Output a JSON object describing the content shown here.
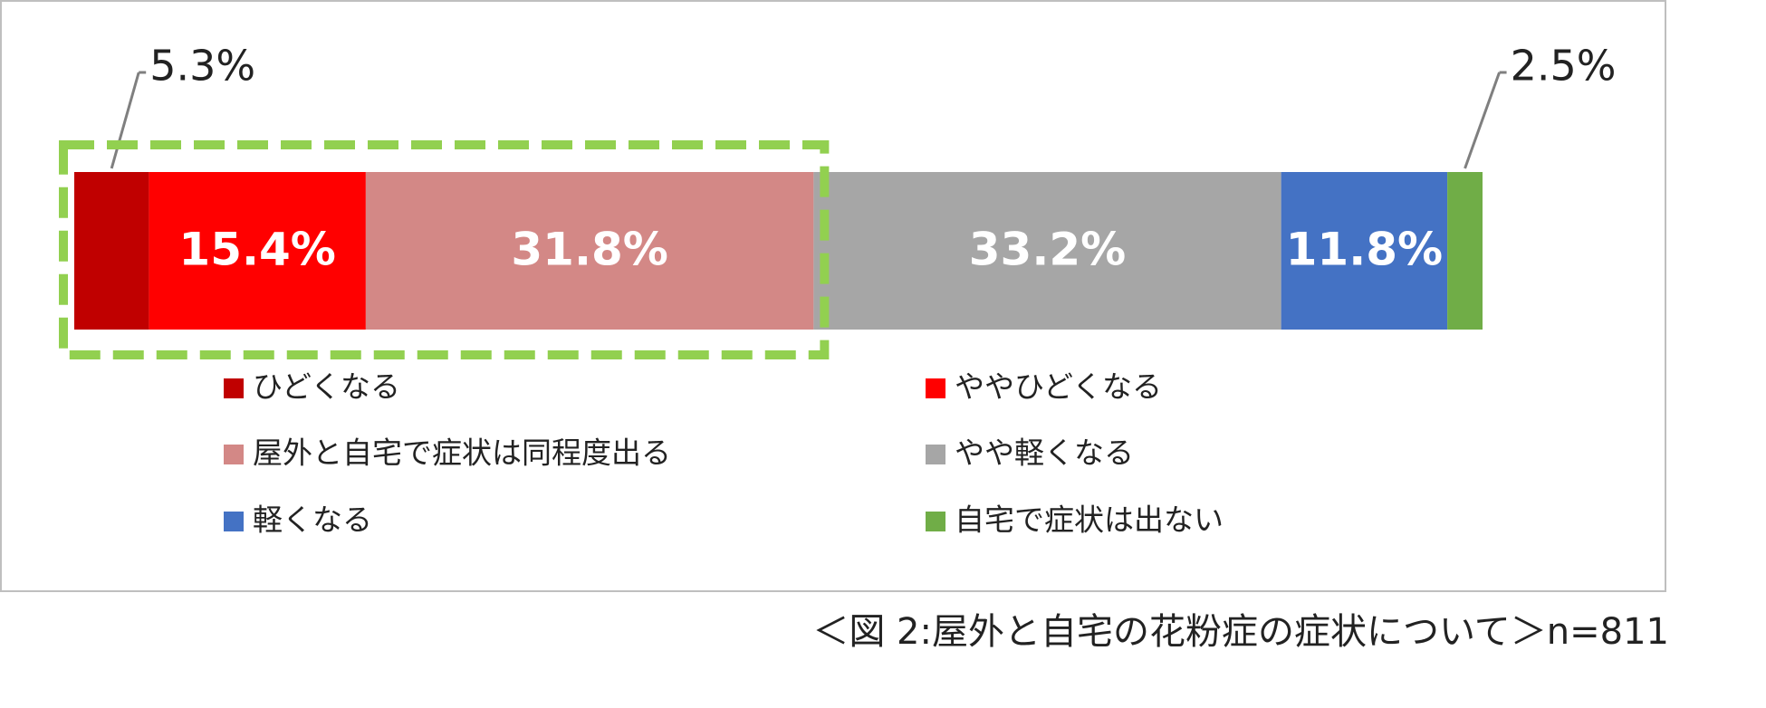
{
  "chart_data": {
    "type": "stacked_bar",
    "xlim": [
      0,
      100
    ],
    "series": [
      {
        "name": "ひどくなる",
        "color": "#c00000",
        "values": [
          5.3
        ],
        "value_labels": [
          "5.3%"
        ]
      },
      {
        "name": "ややひどくなる",
        "color": "#ff0000",
        "values": [
          15.4
        ],
        "value_labels": [
          "15.4%"
        ]
      },
      {
        "name": "屋外と自宅で症状は同程度出る",
        "color": "#d38886",
        "values": [
          31.8
        ],
        "value_labels": [
          "31.8%"
        ]
      },
      {
        "name": "やや軽くなる",
        "color": "#a6a6a6",
        "values": [
          33.2
        ],
        "value_labels": [
          "33.2%"
        ]
      },
      {
        "name": "軽くなる",
        "color": "#4472c4",
        "values": [
          11.8
        ],
        "value_labels": [
          "11.8%"
        ]
      },
      {
        "name": "自宅で症状は出ない",
        "color": "#70ad47",
        "values": [
          2.5
        ],
        "value_labels": [
          "2.5%"
        ]
      }
    ],
    "caption": "＜図 2:屋外と自宅の花粉症の症状について＞n=811"
  }
}
